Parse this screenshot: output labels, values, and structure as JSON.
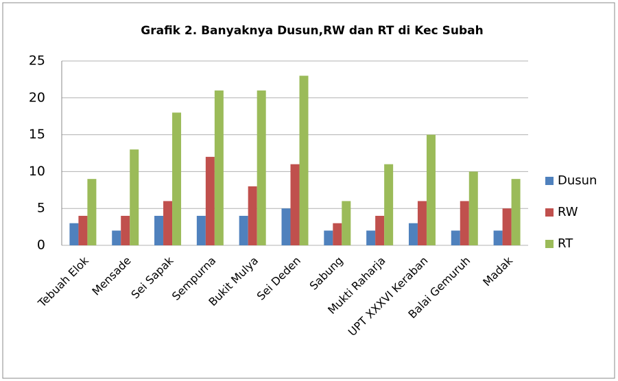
{
  "chart_data": {
    "type": "bar",
    "title": "Grafik 2. Banyaknya Dusun,RW dan RT di Kec Subah",
    "categories": [
      "Tebuah Elok",
      "Mensade",
      "Sei Sapak",
      "Sempurna",
      "Bukit Mulya",
      "Sei Deden",
      "Sabung",
      "Mukti Raharja",
      "UPT XXXVI Keraban",
      "Balai Gemuruh",
      "Madak"
    ],
    "series": [
      {
        "name": "Dusun",
        "color": "#4f81bd",
        "values": [
          3,
          2,
          4,
          4,
          4,
          5,
          2,
          2,
          3,
          2,
          2
        ]
      },
      {
        "name": "RW",
        "color": "#c0504d",
        "values": [
          4,
          4,
          6,
          12,
          8,
          11,
          3,
          4,
          6,
          6,
          5
        ]
      },
      {
        "name": "RT",
        "color": "#9bbb59",
        "values": [
          9,
          13,
          18,
          21,
          21,
          23,
          6,
          11,
          15,
          10,
          9
        ]
      }
    ],
    "ylim": [
      0,
      25
    ],
    "yticks": [
      0,
      5,
      10,
      15,
      20,
      25
    ],
    "grid": true,
    "legend": "right"
  }
}
